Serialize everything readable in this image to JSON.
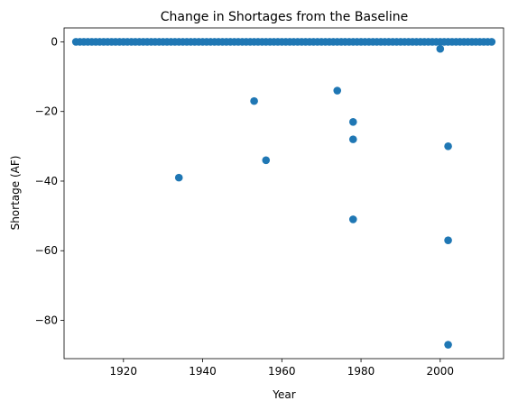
{
  "chart_data": {
    "type": "scatter",
    "title": "Change in Shortages from the Baseline",
    "xlabel": "Year",
    "ylabel": "Shortage (AF)",
    "xlim": [
      1905,
      2016
    ],
    "ylim": [
      -91,
      4
    ],
    "xticks": [
      1920,
      1940,
      1960,
      1980,
      2000
    ],
    "yticks": [
      0,
      -20,
      -40,
      -60,
      -80
    ],
    "xtick_labels": [
      "1920",
      "1940",
      "1960",
      "1980",
      "2000"
    ],
    "ytick_labels": [
      "0",
      "−20",
      "−40",
      "−60",
      "−80"
    ],
    "grid": false,
    "marker_color": "#1f77b4",
    "zero_series": {
      "x_start": 1908,
      "x_end": 2013,
      "y": 0
    },
    "points": [
      {
        "x": 1934,
        "y": -39
      },
      {
        "x": 1953,
        "y": -17
      },
      {
        "x": 1956,
        "y": -34
      },
      {
        "x": 1974,
        "y": -14
      },
      {
        "x": 1978,
        "y": -23
      },
      {
        "x": 1978,
        "y": -28
      },
      {
        "x": 1978,
        "y": -51
      },
      {
        "x": 2000,
        "y": -2
      },
      {
        "x": 2002,
        "y": -30
      },
      {
        "x": 2002,
        "y": -57
      },
      {
        "x": 2002,
        "y": -87
      }
    ]
  }
}
